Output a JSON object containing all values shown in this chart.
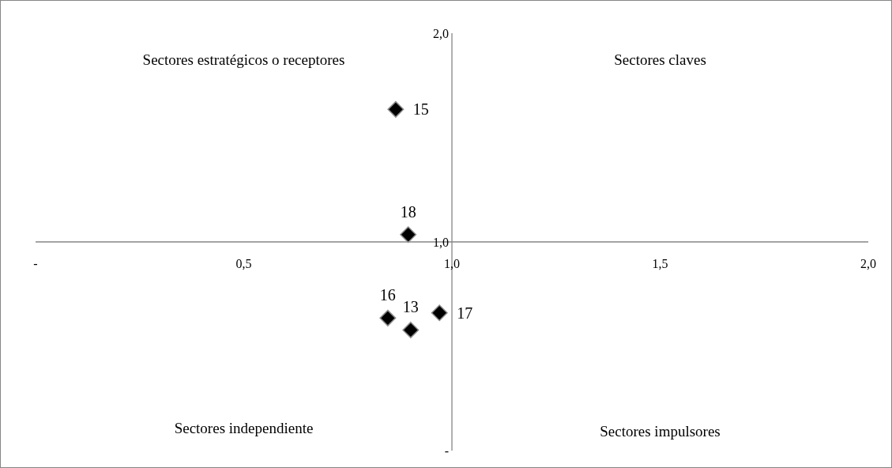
{
  "chart_data": {
    "type": "scatter",
    "marker": "diamond",
    "color": "#000000",
    "x": [
      0.865,
      0.895,
      0.846,
      0.901,
      0.97
    ],
    "values": [
      1.635,
      1.035,
      0.635,
      0.578,
      0.66
    ],
    "xlim": [
      0,
      2
    ],
    "ylim": [
      0,
      2
    ],
    "xticks": [
      {
        "value": 0,
        "label": "-"
      },
      {
        "value": 0.5,
        "label": "0,5"
      },
      {
        "value": 1,
        "label": "1,0"
      },
      {
        "value": 1.5,
        "label": "1,5"
      },
      {
        "value": 2,
        "label": "2,0"
      }
    ],
    "yticks": [
      {
        "value": 0,
        "label": "-"
      },
      {
        "value": 1,
        "label": "1,0"
      },
      {
        "value": 2,
        "label": "2,0"
      }
    ],
    "grid": false,
    "annotations": [
      "Sectores estratégicos o receptores",
      "Sectores claves",
      "Sectores independiente",
      "Sectores impulsores",
      {
        "text": "15",
        "x": 0.865,
        "y": 1.635
      },
      {
        "text": "18",
        "x": 0.895,
        "y": 1.035
      },
      {
        "text": "16",
        "x": 0.846,
        "y": 0.635
      },
      {
        "text": "13",
        "x": 0.901,
        "y": 0.578
      },
      {
        "text": "17",
        "x": 0.97,
        "y": 0.66
      }
    ]
  }
}
